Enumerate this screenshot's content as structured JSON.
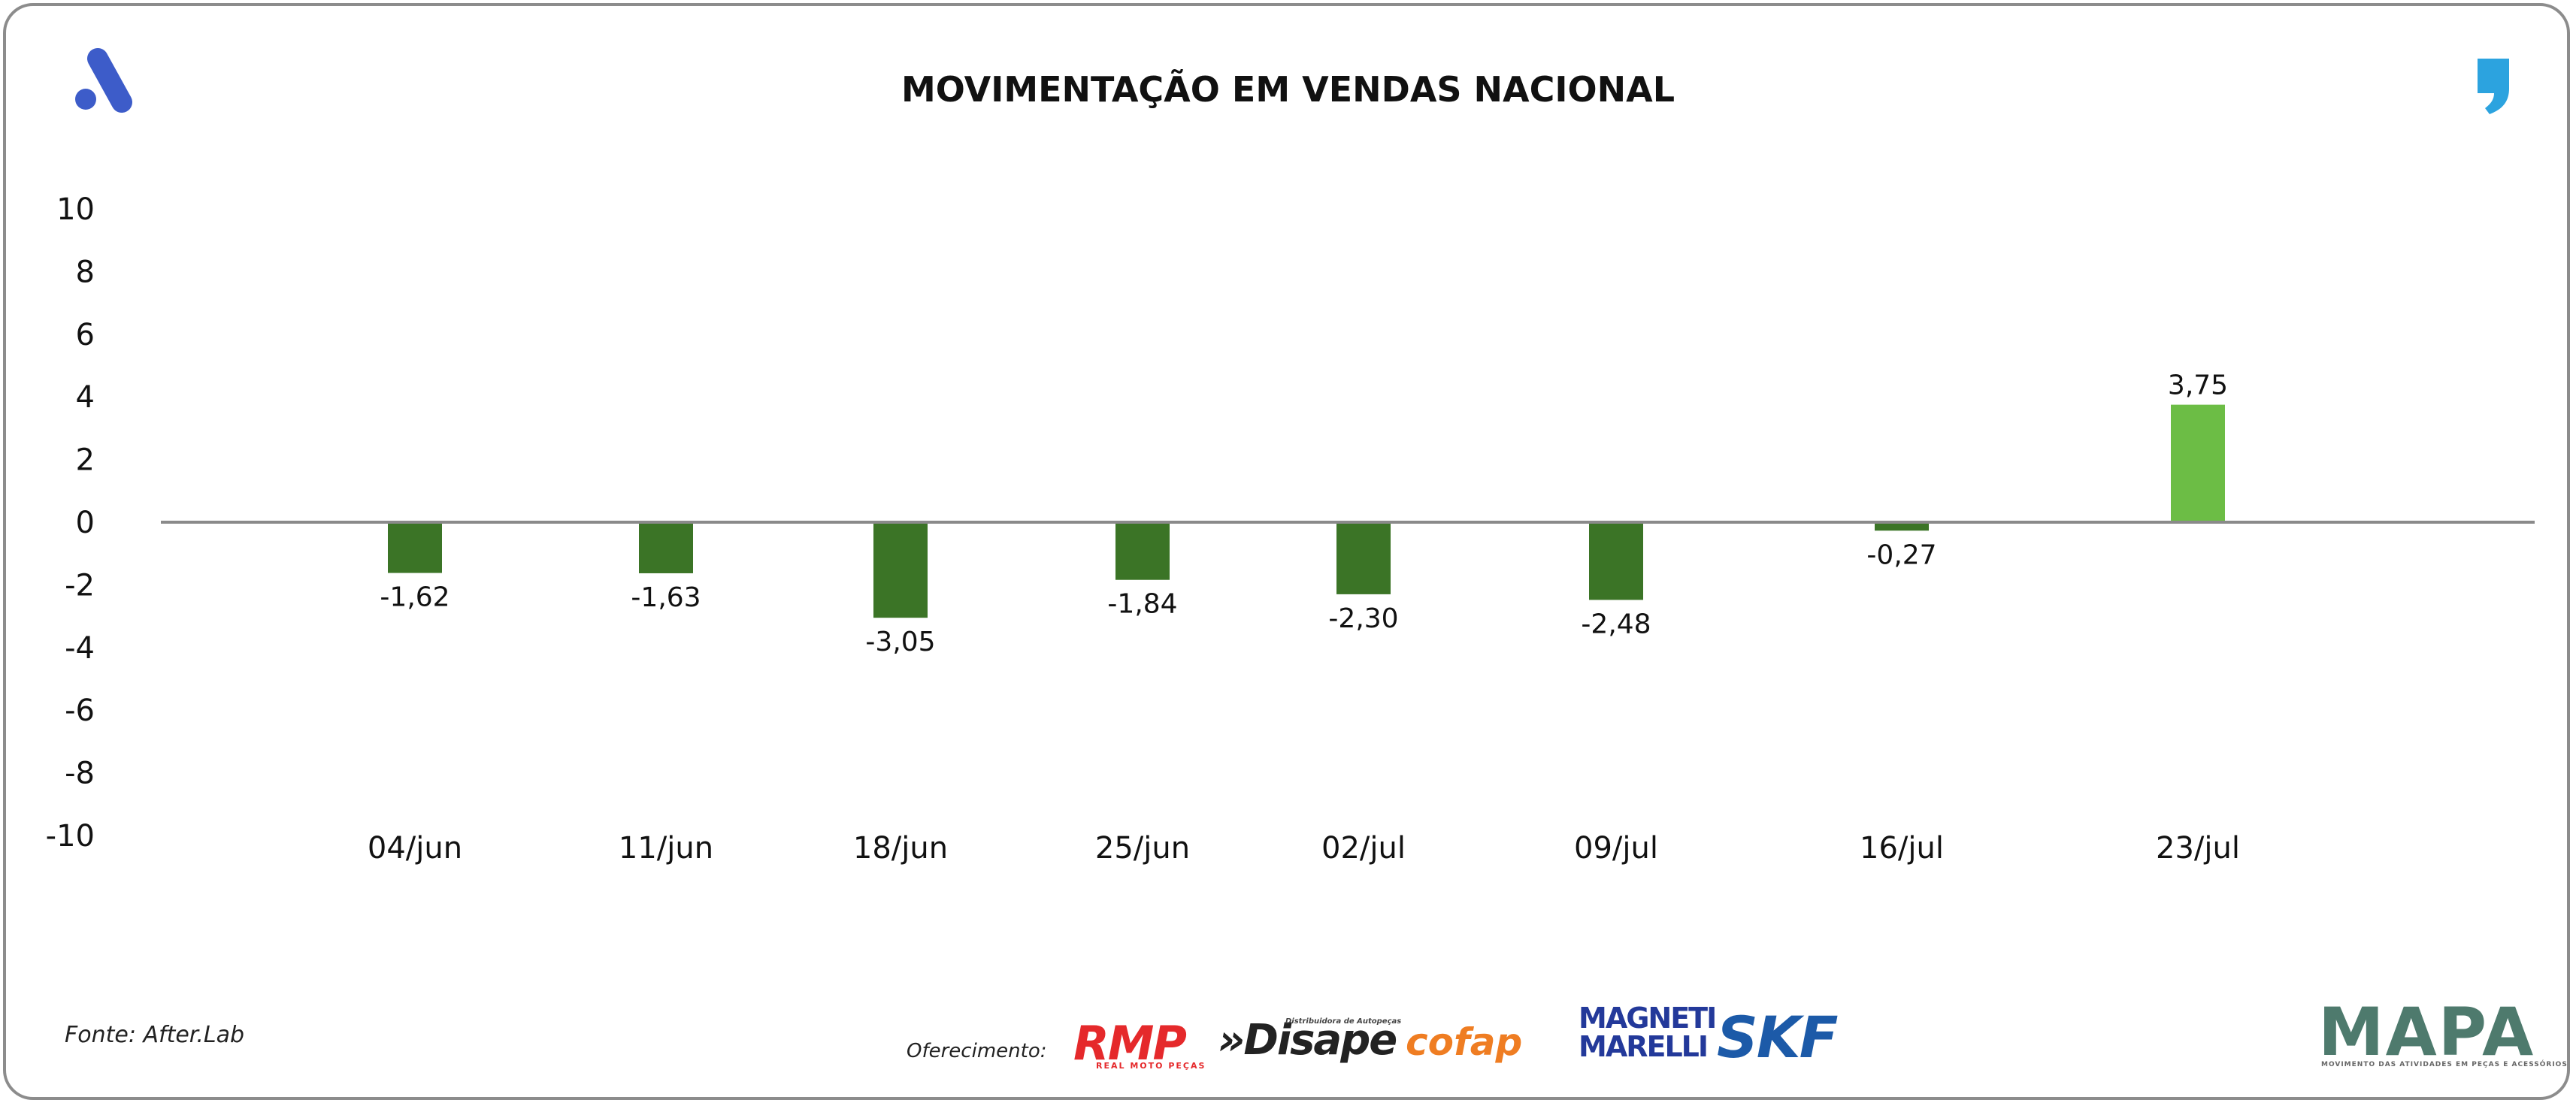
{
  "header": {
    "title": "MOVIMENTAÇÃO EM VENDAS NACIONAL"
  },
  "footer": {
    "source": "Fonte: After.Lab",
    "sponsor_label": "Oferecimento:",
    "sponsors": {
      "rmp": "RMP",
      "rmp_sub": "REAL MOTO PEÇAS",
      "disape": "»Disape",
      "disape_sub": "Distribuidora de Autopeças",
      "cofap": "cofap",
      "magneti_line1": "MAGNETI",
      "magneti_line2": "MARELLI",
      "skf": "SKF",
      "mapa": "MAPA",
      "mapa_sub": "MOVIMENTO DAS ATIVIDADES EM PEÇAS E ACESSÓRIOS"
    }
  },
  "colors": {
    "negative_bar": "#3b7426",
    "positive_bar": "#6cbd45",
    "zero_line": "#8a8a8a",
    "logo_a": "#3d5cc9",
    "logo_quote": "#2ca3df"
  },
  "icons": {
    "left_logo": "letter-a-logo-icon",
    "right_logo": "quote-mark-logo-icon"
  },
  "chart_data": {
    "type": "bar",
    "title": "MOVIMENTAÇÃO EM VENDAS NACIONAL",
    "categories": [
      "04/jun",
      "11/jun",
      "18/jun",
      "25/jun",
      "02/jul",
      "09/jul",
      "16/jul",
      "23/jul"
    ],
    "values": [
      -1.62,
      -1.63,
      -3.05,
      -1.84,
      -2.3,
      -2.48,
      -0.27,
      3.75
    ],
    "value_labels": [
      "-1,62",
      "-1,63",
      "-3,05",
      "-1,84",
      "-2,30",
      "-2,48",
      "-0,27",
      "3,75"
    ],
    "y_ticks": [
      "10",
      "8",
      "6",
      "4",
      "2",
      "0",
      "-2",
      "-4",
      "-6",
      "-8",
      "-10"
    ],
    "ylim": [
      -10,
      10
    ],
    "xlabel": "",
    "ylabel": "",
    "grid": false,
    "legend": "none"
  }
}
